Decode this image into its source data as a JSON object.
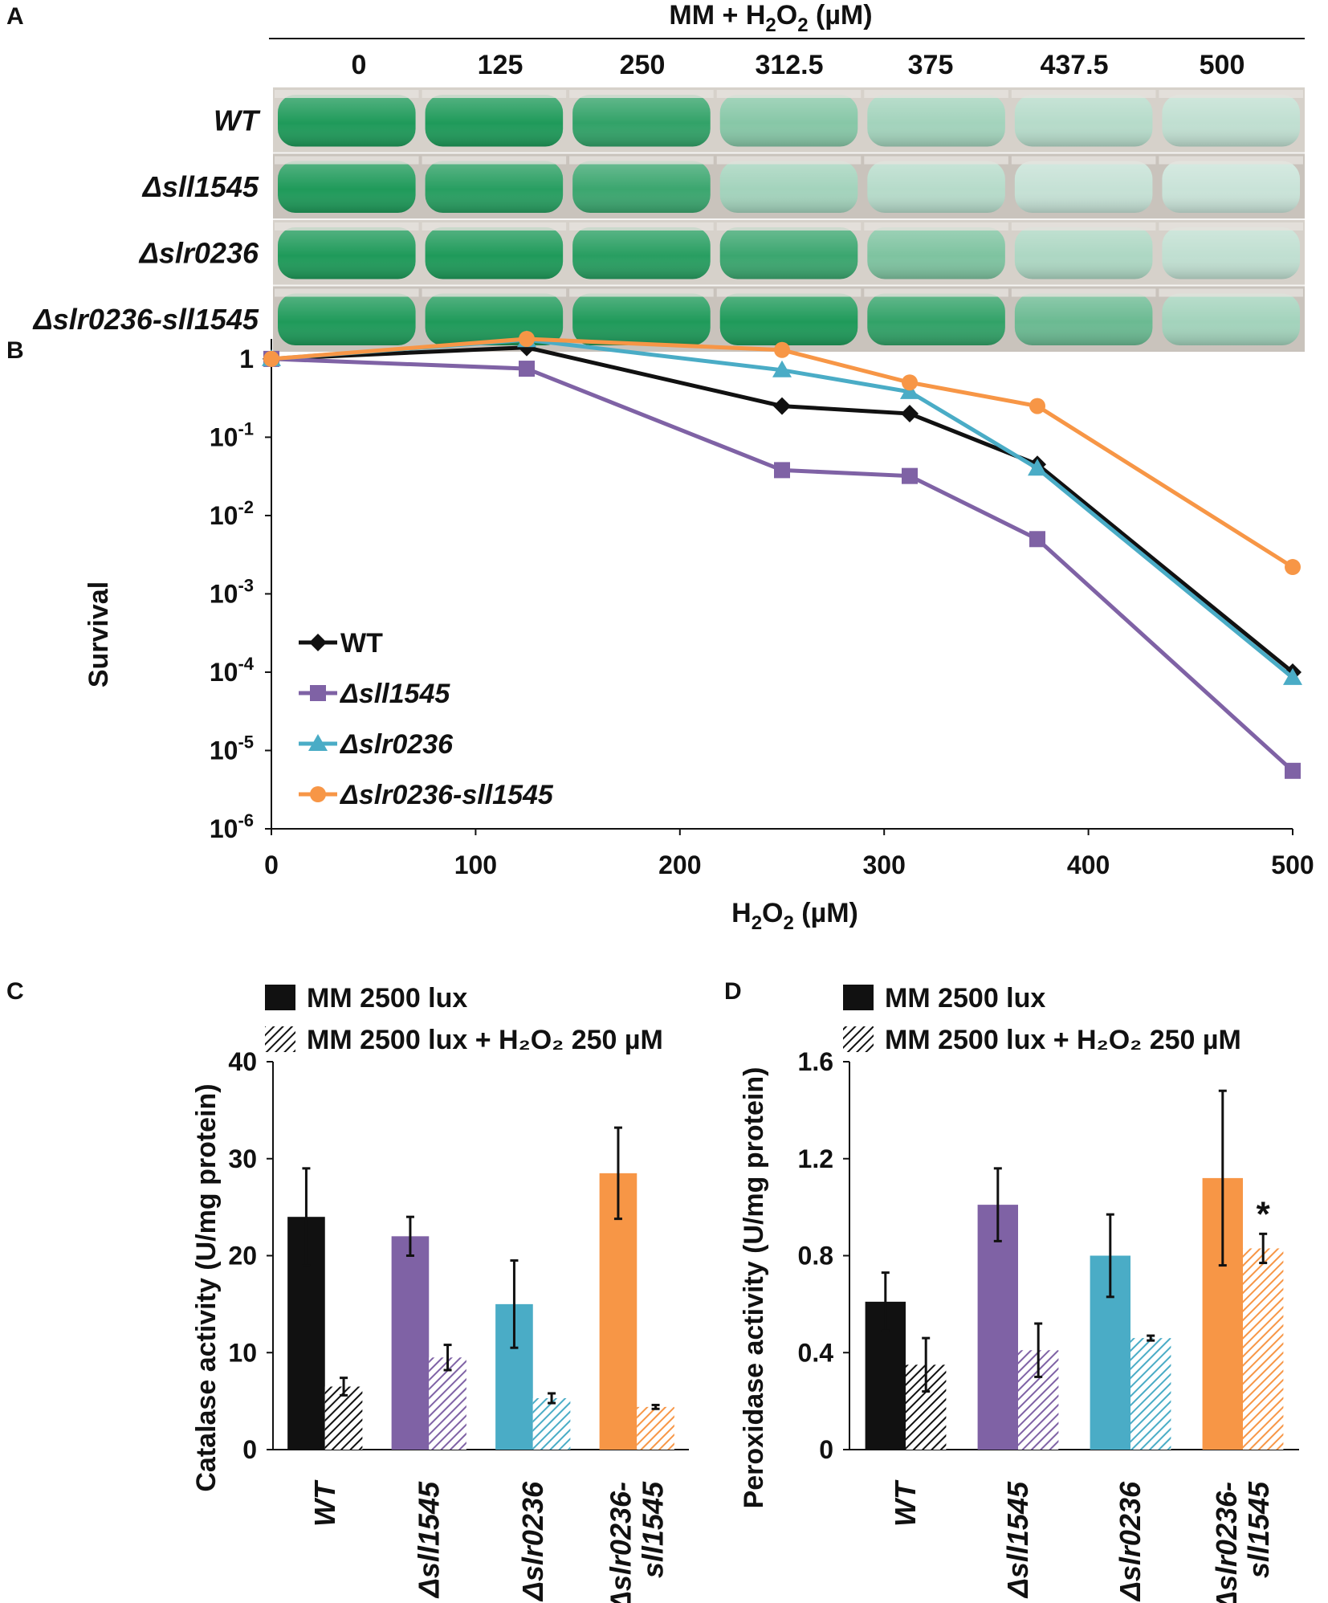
{
  "colors": {
    "WT": "#111111",
    "sll1545": "#7f62a5",
    "slr0236": "#4aacc6",
    "double": "#f79646",
    "flask_green": "#1f9a5a"
  },
  "panel_letters": {
    "A": "A",
    "B": "B",
    "C": "C",
    "D": "D"
  },
  "panel_a": {
    "header_prefix": "MM + H",
    "header_sub2": "2",
    "header_mid": "O",
    "header_sub2b": "2",
    "header_suffix": " (µM)",
    "concentrations": [
      "0",
      "125",
      "250",
      "312.5",
      "375",
      "437.5",
      "500"
    ],
    "strains": [
      {
        "label": "WT",
        "color": "#111111",
        "greenness": [
          1,
          1,
          0.9,
          0.45,
          0.3,
          0.2,
          0.15
        ]
      },
      {
        "label": "Δsll1545",
        "color": "#7f62a5",
        "greenness": [
          1,
          0.95,
          0.85,
          0.3,
          0.2,
          0.12,
          0.1
        ]
      },
      {
        "label": "Δslr0236",
        "color": "#4aacc6",
        "greenness": [
          1,
          1,
          0.95,
          0.85,
          0.5,
          0.25,
          0.15
        ]
      },
      {
        "label": "Δslr0236-sll1545",
        "color": "#f79646",
        "greenness": [
          1,
          1,
          1,
          1,
          0.9,
          0.6,
          0.3
        ]
      }
    ]
  },
  "chart_data": [
    {
      "type": "line",
      "panel": "B",
      "xlabel_prefix": "H",
      "xlabel_sub": "2",
      "xlabel_mid": "O",
      "xlabel_sub2": "2",
      "xlabel_suffix": " (µM)",
      "ylabel": "Survival",
      "yscale": "log",
      "xlim": [
        0,
        500
      ],
      "ylim": [
        1e-06,
        1.8
      ],
      "xticks": [
        "0",
        "100",
        "200",
        "300",
        "400",
        "500"
      ],
      "yticks": [
        {
          "base": "1",
          "exp": ""
        },
        {
          "base": "10",
          "exp": "-1"
        },
        {
          "base": "10",
          "exp": "-2"
        },
        {
          "base": "10",
          "exp": "-3"
        },
        {
          "base": "10",
          "exp": "-4"
        },
        {
          "base": "10",
          "exp": "-5"
        },
        {
          "base": "10",
          "exp": "-6"
        }
      ],
      "x": [
        0,
        125,
        250,
        312.5,
        375,
        500
      ],
      "series": [
        {
          "name": "WT",
          "color": "#111111",
          "marker": "diamond",
          "values": [
            1,
            1.4,
            0.25,
            0.2,
            0.045,
            0.0001
          ]
        },
        {
          "name": "Δsll1545",
          "color": "#7f62a5",
          "marker": "square",
          "values": [
            1,
            0.75,
            0.038,
            0.032,
            0.005,
            5.5e-06
          ]
        },
        {
          "name": "Δslr0236",
          "color": "#4aacc6",
          "marker": "triangle",
          "values": [
            1,
            1.75,
            0.72,
            0.38,
            0.04,
            8.5e-05
          ]
        },
        {
          "name": "Δslr0236-sll1545",
          "color": "#f79646",
          "marker": "circle",
          "values": [
            1,
            1.8,
            1.3,
            0.5,
            0.25,
            0.0022
          ]
        }
      ]
    },
    {
      "type": "bar",
      "panel": "C",
      "ylabel": "Catalase activity (U/mg protein)",
      "ylim": [
        0,
        40
      ],
      "yticks": [
        "0",
        "10",
        "20",
        "30",
        "40"
      ],
      "categories": [
        "WT",
        "Δsll1545",
        "Δslr0236",
        "Δslr0236-sll1545"
      ],
      "category_lines": [
        [
          "WT"
        ],
        [
          "Δsll1545"
        ],
        [
          "Δslr0236"
        ],
        [
          "Δslr0236-",
          "sll1545"
        ]
      ],
      "category_colors": [
        "#111111",
        "#7f62a5",
        "#4aacc6",
        "#f79646"
      ],
      "legend": [
        "MM 2500 lux",
        "MM 2500 lux + H₂O₂ 250 µM"
      ],
      "series": [
        {
          "name": "MM 2500 lux",
          "pattern": "solid",
          "values": [
            24,
            22,
            15,
            28.5
          ],
          "errors": [
            5,
            2,
            4.5,
            4.7
          ]
        },
        {
          "name": "MM 2500 lux + H₂O₂ 250 µM",
          "pattern": "hatched",
          "values": [
            6.5,
            9.5,
            5.3,
            4.4
          ],
          "errors": [
            0.9,
            1.3,
            0.5,
            0.2
          ]
        }
      ]
    },
    {
      "type": "bar",
      "panel": "D",
      "ylabel": "Peroxidase activity (U/mg protein)",
      "ylim": [
        0,
        1.6
      ],
      "yticks": [
        "0",
        "0.4",
        "0.8",
        "1.2",
        "1.6"
      ],
      "categories": [
        "WT",
        "Δsll1545",
        "Δslr0236",
        "Δslr0236-sll1545"
      ],
      "category_lines": [
        [
          "WT"
        ],
        [
          "Δsll1545"
        ],
        [
          "Δslr0236"
        ],
        [
          "Δslr0236-",
          "sll1545"
        ]
      ],
      "category_colors": [
        "#111111",
        "#7f62a5",
        "#4aacc6",
        "#f79646"
      ],
      "legend": [
        "MM 2500 lux",
        "MM 2500 lux + H₂O₂ 250 µM"
      ],
      "series": [
        {
          "name": "MM 2500 lux",
          "pattern": "solid",
          "values": [
            0.61,
            1.01,
            0.8,
            1.12
          ],
          "errors": [
            0.12,
            0.15,
            0.17,
            0.36
          ]
        },
        {
          "name": "MM 2500 lux + H₂O₂ 250 µM",
          "pattern": "hatched",
          "values": [
            0.35,
            0.41,
            0.46,
            0.83
          ],
          "errors": [
            0.11,
            0.11,
            0.01,
            0.06
          ]
        }
      ],
      "annotation": "*"
    }
  ]
}
